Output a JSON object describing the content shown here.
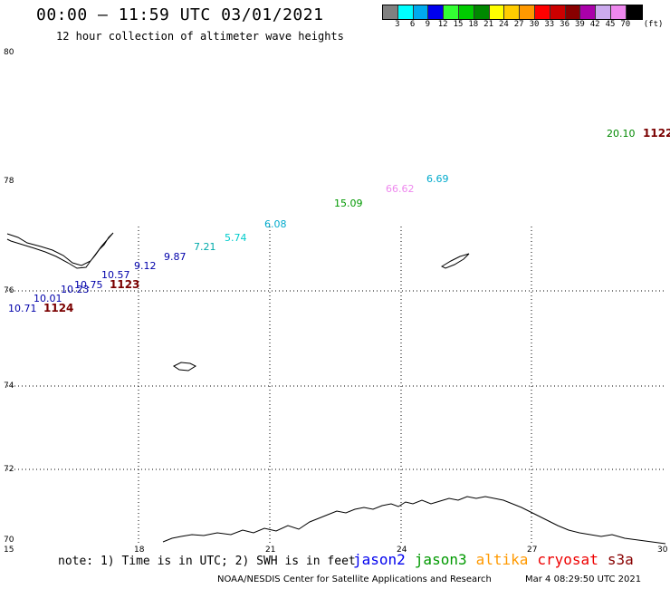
{
  "header": {
    "title": "00:00 – 11:59 UTC 03/01/2021",
    "subtitle": "12 hour collection of altimeter wave heights"
  },
  "legend": {
    "unit": "(ft)",
    "ticks": [
      "3",
      "6",
      "9",
      "12",
      "15",
      "18",
      "21",
      "24",
      "27",
      "30",
      "33",
      "36",
      "39",
      "42",
      "45",
      "70"
    ],
    "colors": [
      "#808080",
      "#00ffff",
      "#00aaee",
      "#0000ee",
      "#33ff33",
      "#00cc00",
      "#008800",
      "#ffff00",
      "#ffcc00",
      "#ff9900",
      "#ff0000",
      "#cc0000",
      "#880000",
      "#aa00aa",
      "#ccaaee",
      "#ee88ee",
      "#000000"
    ]
  },
  "axes": {
    "lat_labels": [
      "80",
      "78",
      "76",
      "74",
      "72",
      "70"
    ],
    "lon_labels": [
      "15",
      "18",
      "21",
      "24",
      "27",
      "30"
    ]
  },
  "observations": [
    {
      "text": "10.71",
      "color": "#0000aa"
    },
    {
      "text": "10.01",
      "color": "#0000aa"
    },
    {
      "text": "10.23",
      "color": "#0000aa"
    },
    {
      "text": "10.75",
      "color": "#0000aa"
    },
    {
      "text": "10.57",
      "color": "#0000aa"
    },
    {
      "text": "9.12",
      "color": "#0000aa"
    },
    {
      "text": "9.87",
      "color": "#0000aa"
    },
    {
      "text": "7.21",
      "color": "#00aaaa"
    },
    {
      "text": "5.74",
      "color": "#00cccc"
    },
    {
      "text": "6.08",
      "color": "#00aacc"
    },
    {
      "text": "15.09",
      "color": "#009900"
    },
    {
      "text": "66.62",
      "color": "#ee88ee"
    },
    {
      "text": "6.69",
      "color": "#00aacc"
    },
    {
      "text": "20.10",
      "color": "#008800"
    }
  ],
  "track_ids": [
    "1124",
    "1123",
    "1122"
  ],
  "footer": {
    "note": "note: 1) Time is in UTC; 2) SWH is in feet",
    "satellites": [
      {
        "name": "jason2",
        "color": "#0000ee"
      },
      {
        "name": "jason3",
        "color": "#009900"
      },
      {
        "name": "altika",
        "color": "#ff9900"
      },
      {
        "name": "cryosat",
        "color": "#ee0000"
      },
      {
        "name": "s3a",
        "color": "#880000"
      }
    ],
    "credit": "NOAA/NESDIS Center for Satellite Applications and Research",
    "timestamp": "Mar  4 08:29:50 UTC 2021"
  }
}
